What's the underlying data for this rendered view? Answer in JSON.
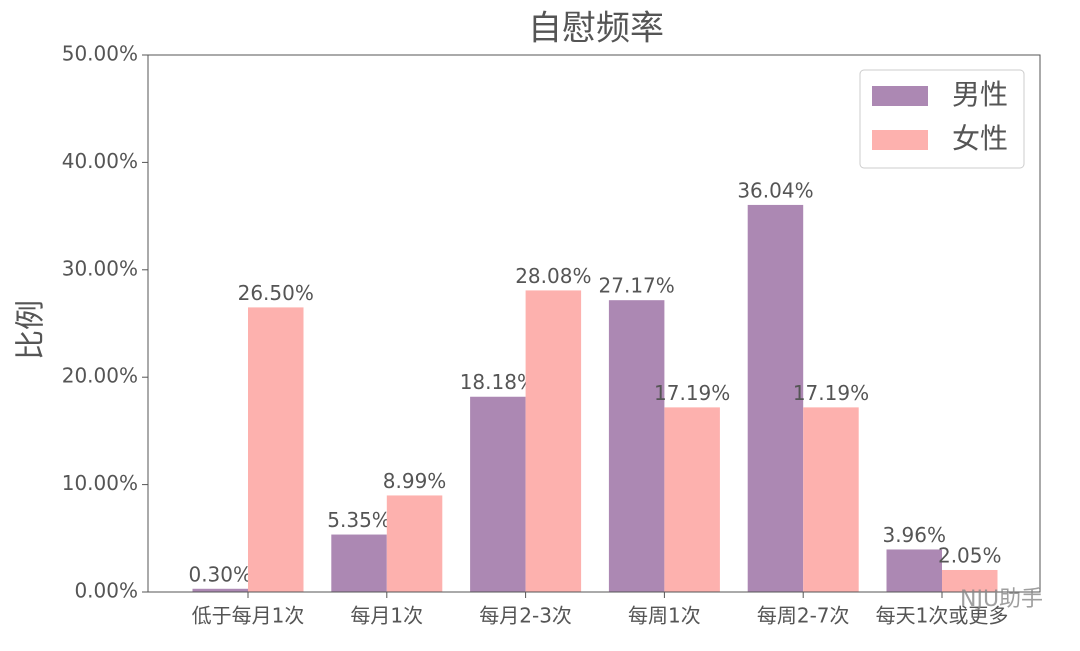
{
  "chart_data": {
    "type": "bar",
    "title": "自慰频率",
    "y_label": "比例",
    "categories": [
      "低于每月1次",
      "每月1次",
      "每月2-3次",
      "每周1次",
      "每周2-7次",
      "每天1次或更多"
    ],
    "series": [
      {
        "name": "男性",
        "color": "#ac88b3",
        "values": [
          0.3,
          5.35,
          18.18,
          27.17,
          36.04,
          3.96
        ],
        "value_labels": [
          "0.30%",
          "5.35%",
          "18.18%",
          "27.17%",
          "36.04%",
          "3.96%"
        ]
      },
      {
        "name": "女性",
        "color": "#fdb1ae",
        "values": [
          26.5,
          8.99,
          28.08,
          17.19,
          17.19,
          2.05
        ],
        "value_labels": [
          "26.50%",
          "8.99%",
          "28.08%",
          "17.19%",
          "17.19%",
          "2.05%"
        ]
      }
    ],
    "ylim": [
      0,
      50
    ],
    "yticks": [
      {
        "value": 0,
        "label": "0.00%"
      },
      {
        "value": 10,
        "label": "10.00%"
      },
      {
        "value": 20,
        "label": "20.00%"
      },
      {
        "value": 30,
        "label": "30.00%"
      },
      {
        "value": 40,
        "label": "40.00%"
      },
      {
        "value": 50,
        "label": "50.00%"
      }
    ],
    "legend": "upper right",
    "watermark": "NJU助手"
  }
}
